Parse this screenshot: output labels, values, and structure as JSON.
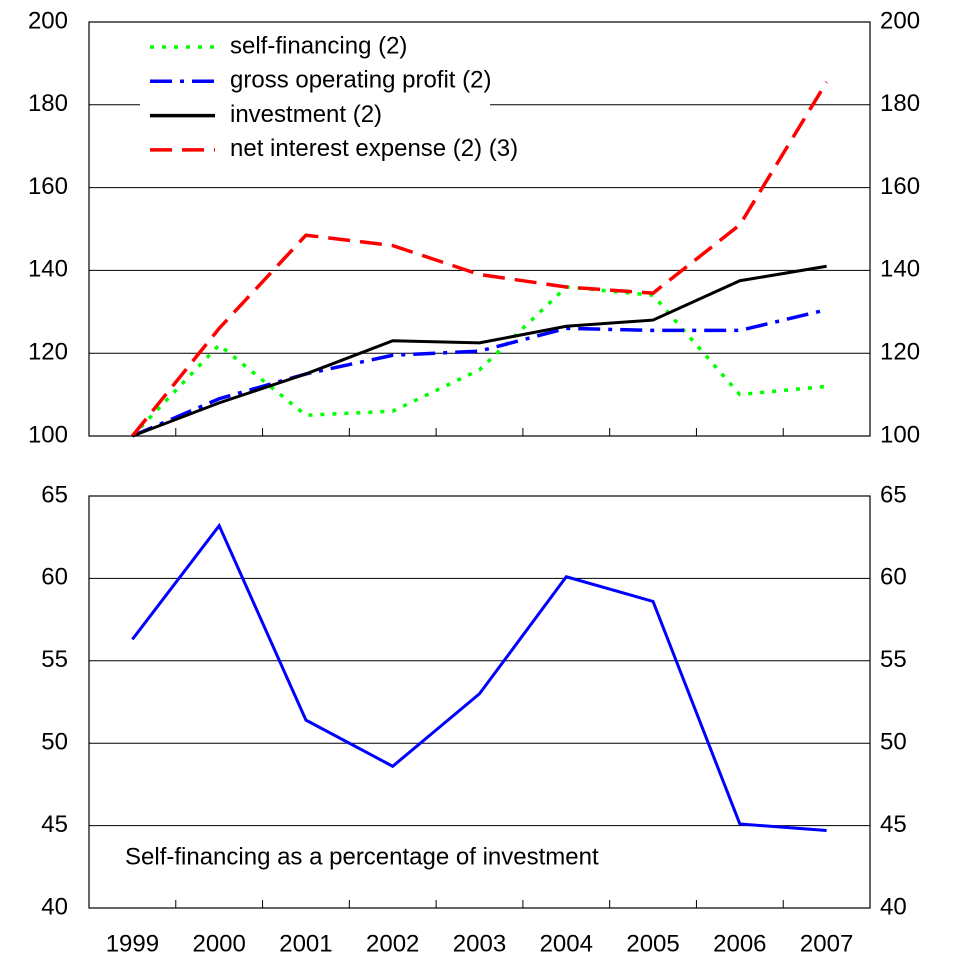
{
  "chart_data": [
    {
      "type": "line",
      "categories": [
        "1999",
        "2000",
        "2001",
        "2002",
        "2003",
        "2004",
        "2005",
        "2006",
        "2007"
      ],
      "series": [
        {
          "name": "self-financing (2)",
          "color": "#00ff00",
          "dash": "dotted",
          "values": [
            100,
            122,
            105,
            106,
            116,
            136,
            134,
            110,
            112
          ]
        },
        {
          "name": "gross operating profit (2)",
          "color": "#0000ff",
          "dash": "dashdot",
          "values": [
            100,
            109,
            115,
            119.5,
            120.5,
            126,
            125.5,
            125.5,
            130.5
          ]
        },
        {
          "name": "investment (2)",
          "color": "#000000",
          "dash": "solid",
          "values": [
            100,
            108,
            115,
            123,
            122.5,
            126.5,
            128,
            137.5,
            141
          ]
        },
        {
          "name": "net interest expense (2) (3)",
          "color": "#ff0000",
          "dash": "dashed",
          "values": [
            100,
            126,
            148.5,
            146,
            139,
            136,
            134.5,
            151,
            185.5
          ]
        }
      ],
      "ylim": [
        100,
        200
      ],
      "yticks": [
        100,
        120,
        140,
        160,
        180,
        200
      ],
      "grid": true,
      "legend": "top-left"
    },
    {
      "type": "line",
      "annotation": "Self-financing as a percentage of investment",
      "series": [
        {
          "color": "#0000ff",
          "dash": "solid",
          "values": [
            56.3,
            63.2,
            51.4,
            48.6,
            53,
            60.1,
            58.6,
            45.1,
            44.7
          ]
        }
      ],
      "ylim": [
        40,
        65
      ],
      "yticks": [
        40,
        45,
        50,
        55,
        60,
        65
      ],
      "grid": true
    }
  ]
}
